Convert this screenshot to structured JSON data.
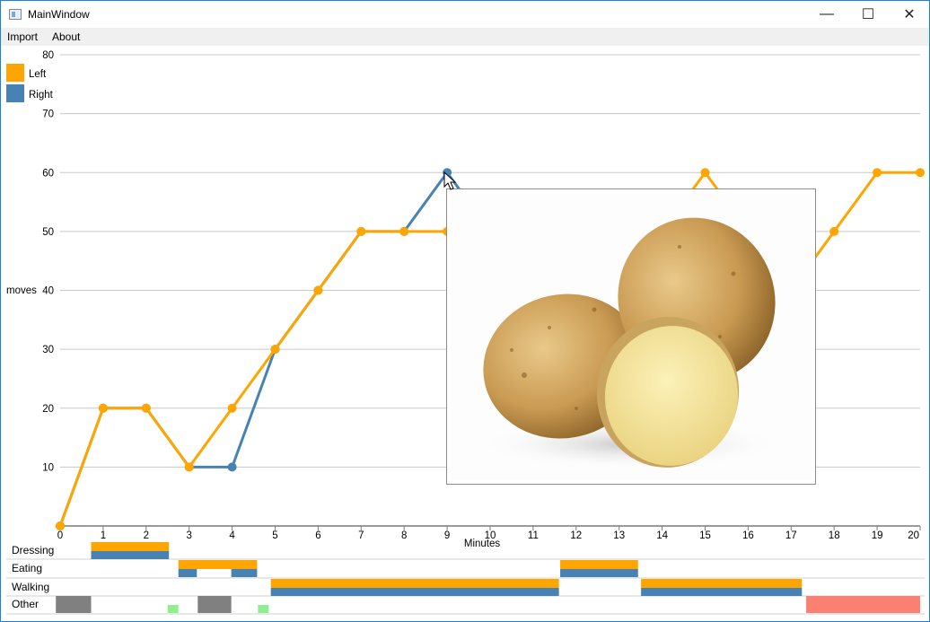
{
  "window": {
    "title": "MainWindow",
    "controls": {
      "minimize": "—",
      "maximize": "☐",
      "close": "✕"
    }
  },
  "menu": {
    "items": [
      {
        "label": "Import"
      },
      {
        "label": "About"
      }
    ]
  },
  "legend": [
    {
      "label": "Left",
      "color": "#ffa500"
    },
    {
      "label": "Right",
      "color": "#4682b4"
    }
  ],
  "chart_data": [
    {
      "type": "line",
      "title": "",
      "xlabel": "Minutes",
      "ylabel": "moves",
      "xlim": [
        0,
        20
      ],
      "ylim": [
        0,
        80
      ],
      "yticks": [
        10,
        20,
        30,
        40,
        50,
        60,
        70,
        80
      ],
      "xticks": [
        0,
        1,
        2,
        3,
        4,
        5,
        6,
        7,
        8,
        9,
        10,
        11,
        12,
        13,
        14,
        15,
        16,
        17,
        18,
        19,
        20
      ],
      "grid": true,
      "legend_position": "top-left",
      "series": [
        {
          "name": "Right",
          "color": "#4682b4",
          "x": [
            0,
            1,
            2,
            3,
            4,
            5,
            6,
            7,
            8,
            9,
            10
          ],
          "y": [
            0,
            20,
            20,
            10,
            10,
            30,
            40,
            50,
            50,
            60,
            50
          ]
        },
        {
          "name": "Left",
          "color": "#ffa500",
          "x": [
            0,
            1,
            2,
            3,
            4,
            5,
            6,
            7,
            8,
            9,
            10,
            14,
            15,
            16,
            17,
            18,
            19,
            20
          ],
          "y": [
            0,
            20,
            20,
            10,
            20,
            30,
            40,
            50,
            50,
            50,
            50,
            50,
            60,
            50,
            40,
            50,
            60,
            60
          ]
        }
      ]
    },
    {
      "type": "timeline",
      "xlim": [
        0,
        20
      ],
      "rows": [
        {
          "label": "Dressing",
          "segments": [
            {
              "start": 0.72,
              "end": 2.53,
              "left": true,
              "right": true
            }
          ]
        },
        {
          "label": "Eating",
          "segments": [
            {
              "start": 2.75,
              "end": 4.58,
              "left": true,
              "right": false
            },
            {
              "start": 2.75,
              "end": 3.18,
              "left": false,
              "right": true
            },
            {
              "start": 3.98,
              "end": 4.58,
              "left": false,
              "right": true
            },
            {
              "start": 11.63,
              "end": 13.44,
              "left": true,
              "right": true
            }
          ]
        },
        {
          "label": "Walking",
          "segments": [
            {
              "start": 4.9,
              "end": 11.6,
              "left": true,
              "right": true
            },
            {
              "start": 13.51,
              "end": 17.25,
              "left": true,
              "right": true
            }
          ]
        },
        {
          "label": "Other",
          "blocks": [
            {
              "start": -0.1,
              "end": 0.72,
              "color": "#808080"
            },
            {
              "start": 2.5,
              "end": 2.75,
              "color": "#90ee90"
            },
            {
              "start": 3.2,
              "end": 3.98,
              "color": "#808080"
            },
            {
              "start": 4.6,
              "end": 4.85,
              "color": "#90ee90"
            },
            {
              "start": 17.35,
              "end": 20.0,
              "color": "#fa8072"
            }
          ]
        }
      ]
    }
  ],
  "popup": {
    "subject": "potatoes-photo"
  }
}
